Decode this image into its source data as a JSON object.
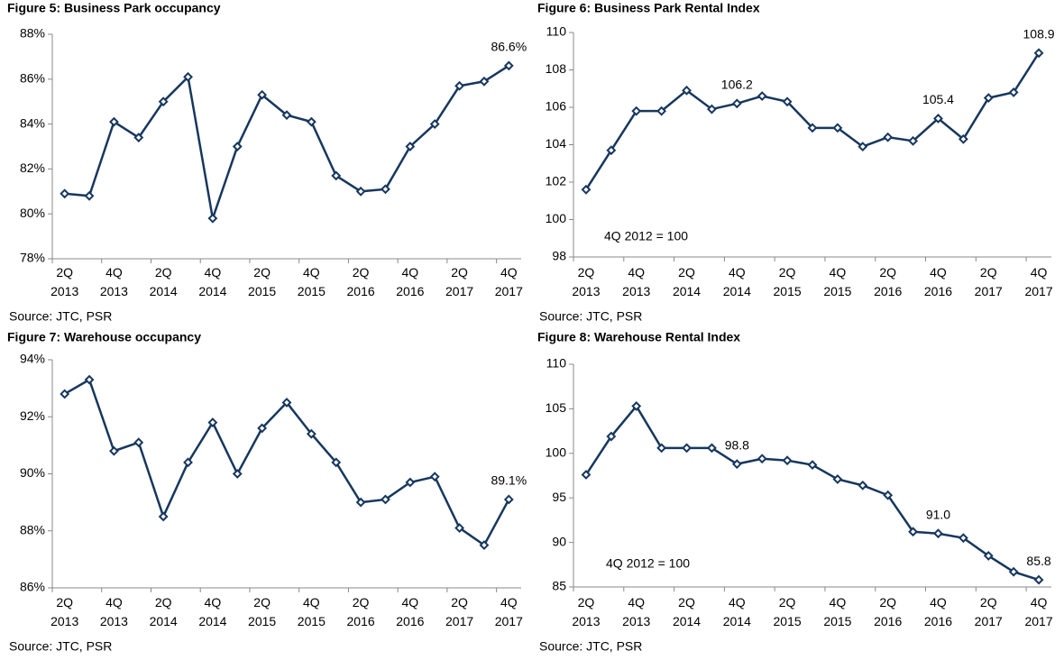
{
  "chart_data": [
    {
      "type": "line",
      "title": "Figure 5: Business Park occupancy",
      "source": "Source: JTC, PSR",
      "categories": [
        "2Q 2013",
        null,
        "4Q 2013",
        null,
        "2Q 2014",
        null,
        "4Q 2014",
        null,
        "2Q 2015",
        null,
        "4Q 2015",
        null,
        "2Q 2016",
        null,
        "4Q 2016",
        null,
        "2Q 2017",
        null,
        "4Q 2017"
      ],
      "values": [
        80.9,
        80.8,
        84.1,
        83.4,
        85.0,
        86.1,
        79.8,
        83.0,
        85.3,
        84.4,
        84.1,
        81.7,
        81.0,
        81.1,
        83.0,
        84.0,
        85.7,
        85.9,
        86.6
      ],
      "value_labels": [
        null,
        null,
        null,
        null,
        null,
        null,
        null,
        null,
        null,
        null,
        null,
        null,
        null,
        null,
        null,
        null,
        null,
        null,
        "86.6%"
      ],
      "color": "#17375e",
      "ylim": [
        78,
        88
      ],
      "yticks": [
        {
          "value": 78,
          "label": "78%"
        },
        {
          "value": 80,
          "label": "80%"
        },
        {
          "value": 82,
          "label": "82%"
        },
        {
          "value": 84,
          "label": "84%"
        },
        {
          "value": 86,
          "label": "86%"
        },
        {
          "value": 88,
          "label": "88%"
        }
      ]
    },
    {
      "type": "line",
      "title": "Figure 6: Business Park Rental Index",
      "source": "Source: JTC, PSR",
      "note": "4Q 2012 = 100",
      "categories": [
        "2Q 2013",
        null,
        "4Q 2013",
        null,
        "2Q 2014",
        null,
        "4Q 2014",
        null,
        "2Q 2015",
        null,
        "4Q 2015",
        null,
        "2Q 2016",
        null,
        "4Q 2016",
        null,
        "2Q 2017",
        null,
        "4Q 2017"
      ],
      "values": [
        101.6,
        103.7,
        105.8,
        105.8,
        106.9,
        105.9,
        106.2,
        106.6,
        106.3,
        104.9,
        104.9,
        103.9,
        104.4,
        104.2,
        105.4,
        104.3,
        106.5,
        106.8,
        108.9
      ],
      "value_labels": [
        null,
        null,
        null,
        null,
        null,
        null,
        "106.2",
        null,
        null,
        null,
        null,
        null,
        null,
        null,
        "105.4",
        null,
        null,
        null,
        "108.9"
      ],
      "color": "#17375e",
      "ylim": [
        98,
        110
      ],
      "yticks": [
        98,
        100,
        102,
        104,
        106,
        108,
        110
      ]
    },
    {
      "type": "line",
      "title": "Figure 7: Warehouse occupancy",
      "source": "Source: JTC, PSR",
      "categories": [
        "2Q 2013",
        null,
        "4Q 2013",
        null,
        "2Q 2014",
        null,
        "4Q 2014",
        null,
        "2Q 2015",
        null,
        "4Q 2015",
        null,
        "2Q 2016",
        null,
        "4Q 2016",
        null,
        "2Q 2017",
        null,
        "4Q 2017"
      ],
      "values": [
        92.8,
        93.3,
        90.8,
        91.1,
        88.5,
        90.4,
        91.8,
        90.0,
        91.6,
        92.5,
        91.4,
        90.4,
        89.0,
        89.1,
        89.7,
        89.9,
        88.1,
        87.5,
        89.1
      ],
      "value_labels": [
        null,
        null,
        null,
        null,
        null,
        null,
        null,
        null,
        null,
        null,
        null,
        null,
        null,
        null,
        null,
        null,
        null,
        null,
        "89.1%"
      ],
      "color": "#17375e",
      "ylim": [
        86,
        94
      ],
      "yticks": [
        {
          "value": 86,
          "label": "86%"
        },
        {
          "value": 88,
          "label": "88%"
        },
        {
          "value": 90,
          "label": "90%"
        },
        {
          "value": 92,
          "label": "92%"
        },
        {
          "value": 94,
          "label": "94%"
        }
      ]
    },
    {
      "type": "line",
      "title": "Figure 8: Warehouse Rental Index",
      "source": "Source: JTC, PSR",
      "note": "4Q 2012 = 100",
      "categories": [
        "2Q 2013",
        null,
        "4Q 2013",
        null,
        "2Q 2014",
        null,
        "4Q 2014",
        null,
        "2Q 2015",
        null,
        "4Q 2015",
        null,
        "2Q 2016",
        null,
        "4Q 2016",
        null,
        "2Q 2017",
        null,
        "4Q 2017"
      ],
      "values": [
        97.6,
        101.9,
        105.3,
        100.6,
        100.6,
        100.6,
        98.8,
        99.4,
        99.2,
        98.7,
        97.1,
        96.4,
        95.3,
        91.2,
        91.0,
        90.5,
        88.5,
        86.7,
        85.8
      ],
      "value_labels": [
        null,
        null,
        null,
        null,
        null,
        null,
        "98.8",
        null,
        null,
        null,
        null,
        null,
        null,
        null,
        "91.0",
        null,
        null,
        null,
        "85.8"
      ],
      "color": "#17375e",
      "ylim": [
        85,
        110
      ],
      "yticks": [
        85,
        90,
        95,
        100,
        105,
        110
      ]
    }
  ]
}
